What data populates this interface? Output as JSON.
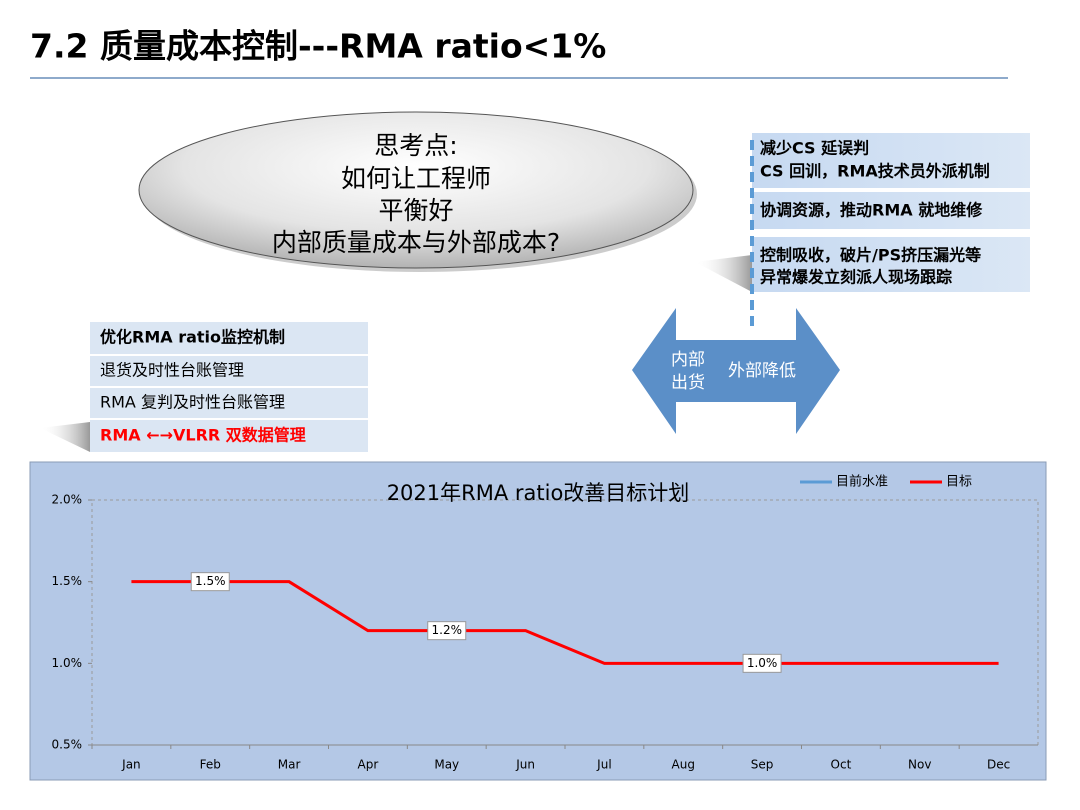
{
  "header": {
    "title": "7.2 质量成本控制---RMA ratio<1%"
  },
  "ellipse": {
    "lines": [
      "思考点:",
      "如何让工程师",
      "平衡好",
      "内部质量成本与外部成本?"
    ]
  },
  "actions": [
    {
      "lines": [
        "减少CS 延误判",
        "CS 回训，RMA技术员外派机制"
      ]
    },
    {
      "lines": [
        "协调资源，推动RMA 就地维修"
      ]
    },
    {
      "lines": [
        "控制吸收，破片/PS挤压漏光等",
        "异常爆发立刻派人现场跟踪"
      ]
    }
  ],
  "arrows": {
    "left": [
      "内部",
      "出货"
    ],
    "right": "外部降低"
  },
  "list": [
    "优化RMA ratio监控机制",
    "退货及时性台账管理",
    "RMA 复判及时性台账管理",
    "RMA ←→VLRR 双数据管理"
  ],
  "chart_data": {
    "type": "line",
    "title": "2021年RMA ratio改善目标计划",
    "categories": [
      "Jan",
      "Feb",
      "Mar",
      "Apr",
      "May",
      "Jun",
      "Jul",
      "Aug",
      "Sep",
      "Oct",
      "Nov",
      "Dec"
    ],
    "series": [
      {
        "name": "目前水准",
        "color": "#5b9bd5",
        "values": [
          null,
          null,
          null,
          null,
          null,
          null,
          null,
          null,
          null,
          null,
          null,
          null
        ]
      },
      {
        "name": "目标",
        "color": "#ff0000",
        "values": [
          1.5,
          1.5,
          1.5,
          1.2,
          1.2,
          1.2,
          1.0,
          1.0,
          1.0,
          1.0,
          1.0,
          1.0
        ],
        "value_labels": [
          null,
          "1.5%",
          null,
          null,
          "1.2%",
          null,
          null,
          null,
          "1.0%",
          null,
          null,
          null
        ]
      }
    ],
    "ylim": [
      0.5,
      2.0
    ],
    "yticks": [
      {
        "value": 0.5,
        "label": "0.5%"
      },
      {
        "value": 1.0,
        "label": "1.0%"
      },
      {
        "value": 1.5,
        "label": "1.5%"
      },
      {
        "value": 2.0,
        "label": "2.0%"
      }
    ],
    "legend": "top-right"
  }
}
